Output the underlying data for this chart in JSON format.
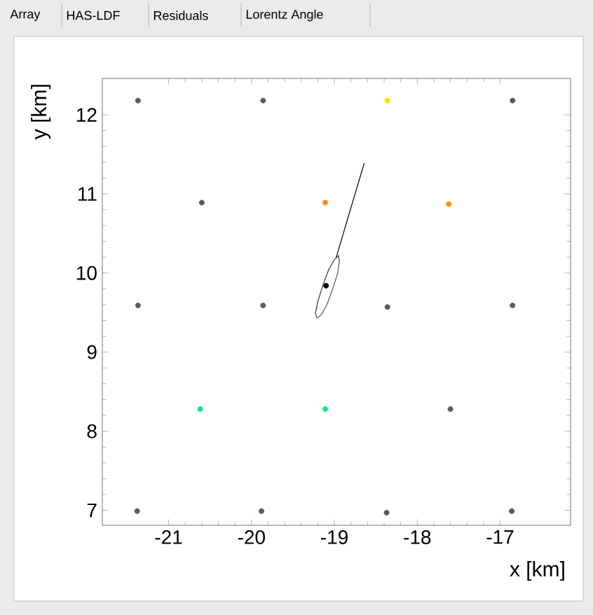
{
  "chart_data": {
    "type": "scatter",
    "xlabel": "x [km]",
    "ylabel": "y [km]",
    "annotations": [
      "Array",
      "HAS-LDF",
      "Residuals",
      "Lorentz Angle"
    ],
    "xlim": [
      -21.8,
      -16.15
    ],
    "ylim": [
      6.81,
      12.46
    ],
    "xticks": [
      -21,
      -20,
      -19,
      -18,
      -17
    ],
    "yticks": [
      7,
      8,
      9,
      10,
      11,
      12
    ],
    "grid": false,
    "series": [
      {
        "color": "#5a5a5a",
        "x": [
          -21.37,
          -19.86,
          -16.85,
          -20.6,
          -21.37,
          -19.86,
          -18.36,
          -16.85,
          -17.6,
          -21.38,
          -19.88,
          -18.37,
          -16.86
        ],
        "values": [
          12.18,
          12.18,
          12.18,
          10.89,
          9.59,
          9.59,
          9.57,
          9.59,
          8.28,
          6.99,
          6.99,
          6.97,
          6.99
        ]
      },
      {
        "color": "#ff8c00",
        "x": [
          -19.11,
          -17.62
        ],
        "values": [
          10.89,
          10.87
        ]
      },
      {
        "color": "#f2e400",
        "x": [
          -18.36
        ],
        "values": [
          12.18
        ]
      },
      {
        "color": "#00ee77",
        "x": [
          -20.62,
          -19.11
        ],
        "values": [
          8.28,
          8.28
        ]
      },
      {
        "color": "#000000",
        "x": [
          -19.1
        ],
        "values": [
          9.84
        ]
      },
      {
        "type": "line",
        "color": "#000000",
        "x": [
          -18.98,
          -18.64
        ],
        "values": [
          10.19,
          11.39
        ]
      },
      {
        "type": "line",
        "color": "#333333",
        "x": [
          -19.23,
          -19.2,
          -19.14,
          -19.07,
          -19.0,
          -18.95,
          -18.94
        ],
        "values": [
          9.49,
          9.64,
          9.84,
          10.04,
          10.17,
          10.22,
          10.15
        ]
      },
      {
        "type": "line",
        "color": "#555555",
        "x": [
          -19.23,
          -19.21,
          -19.16,
          -19.09,
          -19.02,
          -18.96,
          -18.94
        ],
        "values": [
          9.49,
          9.43,
          9.47,
          9.6,
          9.8,
          10.0,
          10.15
        ]
      }
    ]
  }
}
